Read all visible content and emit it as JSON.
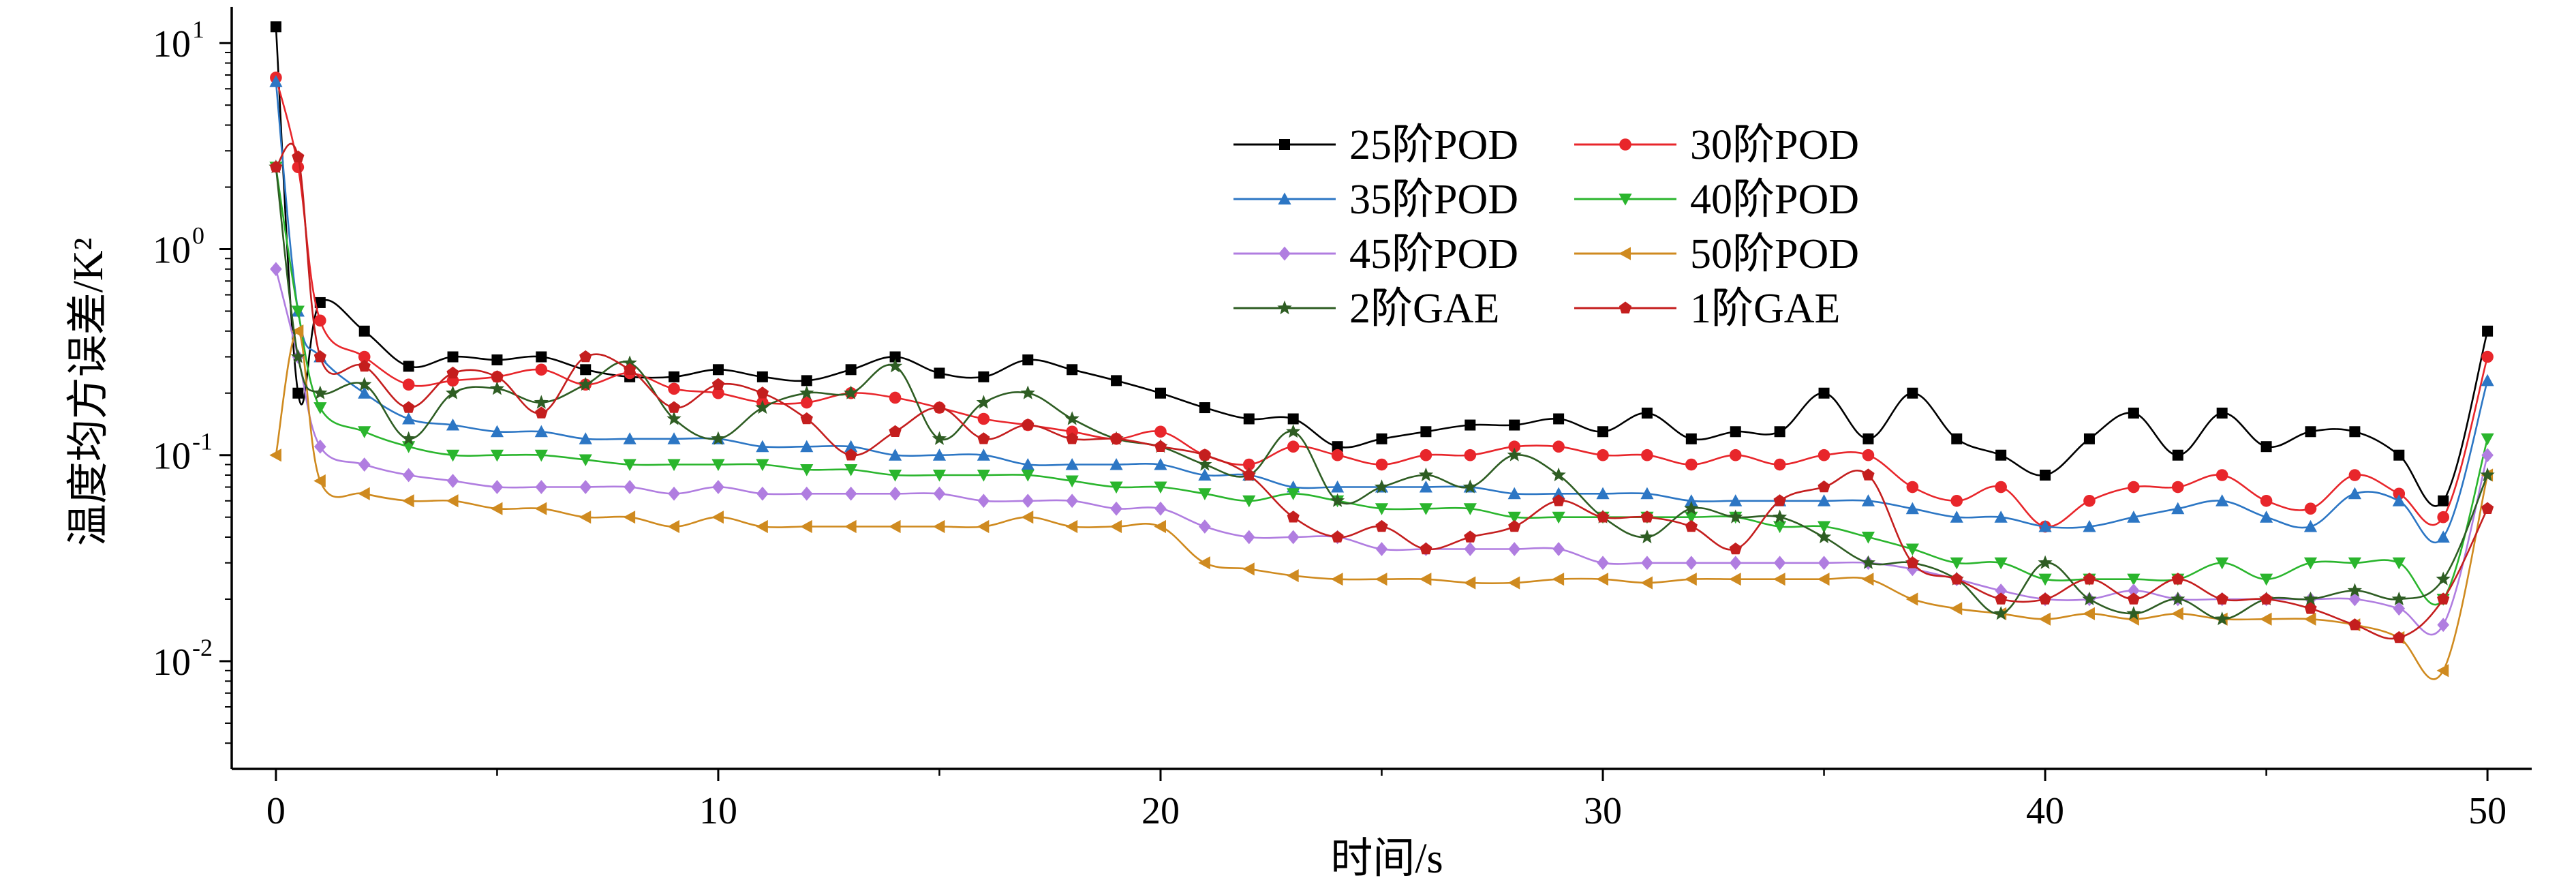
{
  "chart_data": {
    "type": "line",
    "xlabel": "时间/s",
    "ylabel": "温度均方误差/K²",
    "y_scale": "log",
    "xlim": [
      -1,
      51
    ],
    "ylim": [
      0.003,
      15
    ],
    "x_ticks": [
      0,
      10,
      20,
      30,
      40,
      50
    ],
    "x_tick_labels": [
      "0",
      "10",
      "20",
      "30",
      "40",
      "50"
    ],
    "y_ticks": [
      0.01,
      0.1,
      1,
      10
    ],
    "y_tick_labels": [
      {
        "base": "10",
        "exp": "-2"
      },
      {
        "base": "10",
        "exp": "-1"
      },
      {
        "base": "10",
        "exp": "0"
      },
      {
        "base": "10",
        "exp": "1"
      }
    ],
    "grid": false,
    "legend_position": "top-center",
    "x": [
      0,
      0.5,
      1,
      2,
      3,
      4,
      5,
      6,
      7,
      8,
      9,
      10,
      11,
      12,
      13,
      14,
      15,
      16,
      17,
      18,
      19,
      20,
      21,
      22,
      23,
      24,
      25,
      26,
      27,
      28,
      29,
      30,
      31,
      32,
      33,
      34,
      35,
      36,
      37,
      38,
      39,
      40,
      41,
      42,
      43,
      44,
      45,
      46,
      47,
      48,
      49,
      50
    ],
    "series": [
      {
        "name": "25阶POD",
        "color": "#000000",
        "marker": "square",
        "values": [
          12.0,
          0.2,
          0.55,
          0.4,
          0.27,
          0.3,
          0.29,
          0.3,
          0.26,
          0.24,
          0.24,
          0.26,
          0.24,
          0.23,
          0.26,
          0.3,
          0.25,
          0.24,
          0.29,
          0.26,
          0.23,
          0.2,
          0.17,
          0.15,
          0.15,
          0.11,
          0.12,
          0.13,
          0.14,
          0.14,
          0.15,
          0.13,
          0.16,
          0.12,
          0.13,
          0.13,
          0.2,
          0.12,
          0.2,
          0.12,
          0.1,
          0.08,
          0.12,
          0.16,
          0.1,
          0.16,
          0.11,
          0.13,
          0.13,
          0.1,
          0.06,
          0.4
        ]
      },
      {
        "name": "30阶POD",
        "color": "#e8262b",
        "marker": "circle",
        "values": [
          6.8,
          2.5,
          0.45,
          0.3,
          0.22,
          0.23,
          0.24,
          0.26,
          0.22,
          0.25,
          0.21,
          0.2,
          0.18,
          0.18,
          0.2,
          0.19,
          0.17,
          0.15,
          0.14,
          0.13,
          0.12,
          0.13,
          0.1,
          0.09,
          0.11,
          0.1,
          0.09,
          0.1,
          0.1,
          0.11,
          0.11,
          0.1,
          0.1,
          0.09,
          0.1,
          0.09,
          0.1,
          0.1,
          0.07,
          0.06,
          0.07,
          0.045,
          0.06,
          0.07,
          0.07,
          0.08,
          0.06,
          0.055,
          0.08,
          0.065,
          0.05,
          0.3
        ]
      },
      {
        "name": "35阶POD",
        "color": "#2c76c4",
        "marker": "triangle-up",
        "values": [
          6.5,
          0.5,
          0.3,
          0.2,
          0.15,
          0.14,
          0.13,
          0.13,
          0.12,
          0.12,
          0.12,
          0.12,
          0.11,
          0.11,
          0.11,
          0.1,
          0.1,
          0.1,
          0.09,
          0.09,
          0.09,
          0.09,
          0.08,
          0.08,
          0.07,
          0.07,
          0.07,
          0.07,
          0.07,
          0.065,
          0.065,
          0.065,
          0.065,
          0.06,
          0.06,
          0.06,
          0.06,
          0.06,
          0.055,
          0.05,
          0.05,
          0.045,
          0.045,
          0.05,
          0.055,
          0.06,
          0.05,
          0.045,
          0.065,
          0.06,
          0.04,
          0.23
        ]
      },
      {
        "name": "40阶POD",
        "color": "#2ab52d",
        "marker": "triangle-down",
        "values": [
          2.5,
          0.5,
          0.17,
          0.13,
          0.11,
          0.1,
          0.1,
          0.1,
          0.095,
          0.09,
          0.09,
          0.09,
          0.09,
          0.085,
          0.085,
          0.08,
          0.08,
          0.08,
          0.08,
          0.075,
          0.07,
          0.07,
          0.065,
          0.06,
          0.065,
          0.06,
          0.055,
          0.055,
          0.055,
          0.05,
          0.05,
          0.05,
          0.05,
          0.05,
          0.05,
          0.045,
          0.045,
          0.04,
          0.035,
          0.03,
          0.03,
          0.025,
          0.025,
          0.025,
          0.025,
          0.03,
          0.025,
          0.03,
          0.03,
          0.03,
          0.02,
          0.12
        ]
      },
      {
        "name": "45阶POD",
        "color": "#b07de0",
        "marker": "diamond",
        "values": [
          0.8,
          0.3,
          0.11,
          0.09,
          0.08,
          0.075,
          0.07,
          0.07,
          0.07,
          0.07,
          0.065,
          0.07,
          0.065,
          0.065,
          0.065,
          0.065,
          0.065,
          0.06,
          0.06,
          0.06,
          0.055,
          0.055,
          0.045,
          0.04,
          0.04,
          0.04,
          0.035,
          0.035,
          0.035,
          0.035,
          0.035,
          0.03,
          0.03,
          0.03,
          0.03,
          0.03,
          0.03,
          0.03,
          0.028,
          0.025,
          0.022,
          0.02,
          0.02,
          0.022,
          0.02,
          0.02,
          0.02,
          0.02,
          0.02,
          0.018,
          0.015,
          0.1
        ]
      },
      {
        "name": "50阶POD",
        "color": "#cf8a1f",
        "marker": "triangle-left",
        "values": [
          0.1,
          0.4,
          0.075,
          0.065,
          0.06,
          0.06,
          0.055,
          0.055,
          0.05,
          0.05,
          0.045,
          0.05,
          0.045,
          0.045,
          0.045,
          0.045,
          0.045,
          0.045,
          0.05,
          0.045,
          0.045,
          0.045,
          0.03,
          0.028,
          0.026,
          0.025,
          0.025,
          0.025,
          0.024,
          0.024,
          0.025,
          0.025,
          0.024,
          0.025,
          0.025,
          0.025,
          0.025,
          0.025,
          0.02,
          0.018,
          0.017,
          0.016,
          0.017,
          0.016,
          0.017,
          0.016,
          0.016,
          0.016,
          0.015,
          0.013,
          0.009,
          0.08
        ]
      },
      {
        "name": "2阶GAE",
        "color": "#2e5d23",
        "marker": "star",
        "values": [
          2.5,
          0.3,
          0.2,
          0.22,
          0.12,
          0.2,
          0.21,
          0.18,
          0.22,
          0.28,
          0.15,
          0.12,
          0.17,
          0.2,
          0.2,
          0.27,
          0.12,
          0.18,
          0.2,
          0.15,
          0.12,
          0.11,
          0.09,
          0.08,
          0.13,
          0.06,
          0.07,
          0.08,
          0.07,
          0.1,
          0.08,
          0.05,
          0.04,
          0.055,
          0.05,
          0.05,
          0.04,
          0.03,
          0.03,
          0.025,
          0.017,
          0.03,
          0.02,
          0.017,
          0.02,
          0.016,
          0.02,
          0.02,
          0.022,
          0.02,
          0.025,
          0.08
        ]
      },
      {
        "name": "1阶GAE",
        "color": "#c41e1e",
        "marker": "pentagon",
        "values": [
          2.5,
          2.8,
          0.3,
          0.27,
          0.17,
          0.25,
          0.24,
          0.16,
          0.3,
          0.26,
          0.17,
          0.22,
          0.2,
          0.15,
          0.1,
          0.13,
          0.17,
          0.12,
          0.14,
          0.12,
          0.12,
          0.11,
          0.1,
          0.08,
          0.05,
          0.04,
          0.045,
          0.035,
          0.04,
          0.045,
          0.06,
          0.05,
          0.05,
          0.045,
          0.035,
          0.06,
          0.07,
          0.08,
          0.03,
          0.025,
          0.02,
          0.02,
          0.025,
          0.02,
          0.025,
          0.02,
          0.02,
          0.018,
          0.015,
          0.013,
          0.02,
          0.055
        ]
      }
    ]
  }
}
